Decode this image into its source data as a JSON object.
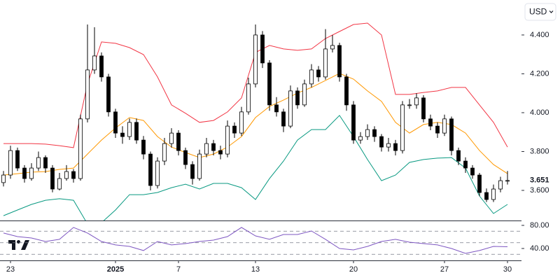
{
  "currency": "USD",
  "chart_data": [
    {
      "type": "candlestick",
      "xlim": [
        -0.5,
        74
      ],
      "ylim": [
        3.445,
        4.58
      ],
      "xticks": [
        {
          "value": 1,
          "label": "23"
        },
        {
          "value": 16,
          "label": "2025"
        },
        {
          "value": 25,
          "label": "7"
        },
        {
          "value": 36,
          "label": "13"
        },
        {
          "value": 50,
          "label": "20"
        },
        {
          "value": 63,
          "label": "27"
        },
        {
          "value": 72,
          "label": "30"
        }
      ],
      "yticks": [
        {
          "value": 4.4,
          "label": "4.400"
        },
        {
          "value": 4.2,
          "label": "4.200"
        },
        {
          "value": 4.0,
          "label": "4.000"
        },
        {
          "value": 3.8,
          "label": "3.800"
        },
        {
          "value": 3.6,
          "label": "3.600"
        }
      ],
      "up_color": "#ffffff",
      "down_color": "#000000",
      "edge_color": "#000000",
      "open": [
        3.64,
        3.679,
        3.805,
        3.715,
        3.661,
        3.715,
        3.769,
        3.715,
        3.607,
        3.661,
        3.697,
        3.661,
        3.968,
        4.22,
        4.292,
        4.184,
        4.004,
        3.895,
        3.877,
        3.95,
        3.859,
        3.787,
        3.625,
        3.751,
        3.841,
        3.895,
        3.805,
        3.733,
        3.661,
        3.787,
        3.841,
        3.805,
        3.787,
        3.931,
        3.895,
        4.004,
        4.148,
        4.4,
        4.256,
        4.04,
        4.004,
        3.931,
        4.112,
        4.04,
        4.148,
        4.22,
        4.184,
        4.328,
        4.346,
        4.184,
        4.04,
        3.859,
        3.877,
        3.913,
        3.877,
        3.823,
        3.841,
        3.805,
        4.04,
        4.04,
        4.076,
        3.968,
        3.931,
        3.895,
        3.968,
        3.805,
        3.751,
        3.715,
        3.679,
        3.589,
        3.553,
        3.607,
        3.65
      ],
      "high": [
        3.7,
        3.83,
        3.82,
        3.73,
        3.74,
        3.8,
        3.78,
        3.73,
        3.69,
        3.73,
        3.71,
        3.99,
        4.454,
        4.44,
        4.31,
        4.2,
        4.02,
        3.93,
        3.97,
        3.97,
        3.88,
        3.8,
        3.77,
        3.87,
        3.92,
        3.91,
        3.82,
        3.75,
        3.81,
        3.87,
        3.86,
        3.83,
        3.96,
        3.95,
        4.03,
        4.18,
        4.454,
        4.42,
        4.27,
        4.08,
        4.02,
        4.14,
        4.13,
        4.17,
        4.25,
        4.24,
        4.43,
        4.4,
        4.36,
        4.2,
        4.06,
        3.9,
        3.94,
        3.93,
        3.89,
        3.87,
        3.86,
        4.06,
        4.07,
        4.1,
        4.09,
        3.99,
        3.95,
        3.99,
        3.98,
        3.82,
        3.77,
        3.73,
        3.69,
        3.61,
        3.63,
        3.67,
        3.7
      ],
      "low": [
        3.62,
        3.66,
        3.7,
        3.64,
        3.65,
        3.7,
        3.69,
        3.59,
        3.6,
        3.65,
        3.64,
        3.65,
        3.95,
        4.2,
        4.16,
        3.98,
        3.87,
        3.84,
        3.86,
        3.84,
        3.76,
        3.6,
        3.61,
        3.73,
        3.82,
        3.78,
        3.71,
        3.63,
        3.65,
        3.77,
        3.78,
        3.76,
        3.77,
        3.87,
        3.88,
        3.99,
        4.13,
        4.23,
        4.01,
        3.98,
        3.9,
        3.92,
        4.02,
        4.03,
        4.13,
        4.16,
        4.17,
        4.31,
        4.16,
        4.01,
        3.84,
        3.84,
        3.86,
        3.85,
        3.8,
        3.8,
        3.78,
        3.79,
        4.02,
        4.02,
        3.95,
        3.91,
        3.87,
        3.88,
        3.78,
        3.73,
        3.69,
        3.66,
        3.57,
        3.54,
        3.54,
        3.59,
        3.63
      ],
      "close": [
        3.679,
        3.805,
        3.715,
        3.661,
        3.715,
        3.769,
        3.715,
        3.607,
        3.661,
        3.697,
        3.661,
        3.968,
        4.22,
        4.292,
        4.184,
        4.004,
        3.895,
        3.877,
        3.95,
        3.859,
        3.787,
        3.625,
        3.751,
        3.841,
        3.895,
        3.805,
        3.733,
        3.661,
        3.787,
        3.841,
        3.805,
        3.787,
        3.931,
        3.895,
        4.004,
        4.148,
        4.4,
        4.256,
        4.04,
        4.004,
        3.931,
        4.112,
        4.04,
        4.148,
        4.22,
        4.184,
        4.328,
        4.346,
        4.184,
        4.04,
        3.859,
        3.877,
        3.913,
        3.877,
        3.823,
        3.841,
        3.805,
        4.04,
        4.04,
        4.076,
        3.968,
        3.931,
        3.895,
        3.968,
        3.805,
        3.751,
        3.715,
        3.679,
        3.589,
        3.553,
        3.607,
        3.65,
        3.651
      ],
      "last_value_label": "3.651"
    },
    {
      "type": "line",
      "xlim": [
        -0.5,
        74
      ],
      "ylim": [
        3.445,
        4.58
      ],
      "x": [
        0,
        2,
        4,
        6,
        8,
        10,
        12,
        14,
        16,
        18,
        20,
        22,
        24,
        26,
        28,
        30,
        32,
        34,
        36,
        38,
        40,
        42,
        44,
        46,
        48,
        50,
        52,
        54,
        56,
        58,
        60,
        62,
        64,
        66,
        68,
        70,
        72
      ],
      "series": [
        {
          "color": "#f23645",
          "values": [
            3.841,
            3.841,
            3.841,
            3.838,
            3.83,
            3.82,
            4.148,
            4.364,
            4.357,
            4.335,
            4.299,
            4.184,
            4.04,
            3.997,
            3.95,
            3.96,
            4.004,
            4.076,
            4.31,
            4.346,
            4.328,
            4.321,
            4.328,
            4.382,
            4.418,
            4.454,
            4.461,
            4.4,
            4.094,
            4.094,
            4.104,
            4.112,
            4.13,
            4.13,
            4.04,
            3.95,
            3.823
          ]
        },
        {
          "color": "#ff9800",
          "values": [
            3.679,
            3.686,
            3.694,
            3.697,
            3.708,
            3.715,
            3.787,
            3.859,
            3.921,
            3.975,
            3.96,
            3.877,
            3.823,
            3.795,
            3.769,
            3.787,
            3.823,
            3.877,
            3.975,
            4.032,
            4.065,
            4.101,
            4.13,
            4.166,
            4.202,
            4.173,
            4.112,
            4.058,
            3.95,
            3.895,
            3.939,
            3.95,
            3.939,
            3.895,
            3.805,
            3.733,
            3.686
          ]
        },
        {
          "color": "#089981",
          "values": [
            3.47,
            3.499,
            3.528,
            3.549,
            3.557,
            3.549,
            3.427,
            3.434,
            3.499,
            3.578,
            3.578,
            3.589,
            3.614,
            3.632,
            3.607,
            3.636,
            3.636,
            3.614,
            3.553,
            3.661,
            3.751,
            3.859,
            3.913,
            3.913,
            3.986,
            3.877,
            3.759,
            3.65,
            3.679,
            3.744,
            3.759,
            3.766,
            3.769,
            3.715,
            3.571,
            3.481,
            3.528
          ]
        }
      ]
    },
    {
      "type": "line",
      "xlim": [
        -0.5,
        74
      ],
      "ylim": [
        21.8,
        84.8
      ],
      "yticks": [
        {
          "value": 80,
          "label": "80.00"
        },
        {
          "value": 40,
          "label": "40.00"
        }
      ],
      "levels": [
        70,
        50,
        30
      ],
      "x": [
        0,
        2,
        4,
        6,
        8,
        10,
        12,
        14,
        16,
        18,
        20,
        22,
        24,
        26,
        28,
        30,
        32,
        34,
        36,
        38,
        40,
        42,
        44,
        46,
        48,
        50,
        52,
        54,
        56,
        58,
        60,
        62,
        64,
        66,
        68,
        70,
        72
      ],
      "series": [
        {
          "color": "#7e57c2",
          "values": [
            66.7,
            60.6,
            58.2,
            52.1,
            55.8,
            76.4,
            66.7,
            52.1,
            46.1,
            43.6,
            36.4,
            52.1,
            46.1,
            48.5,
            52.1,
            54.5,
            60.6,
            76.4,
            61.8,
            55.8,
            64.2,
            64.2,
            70.3,
            55.8,
            40.0,
            37.6,
            43.6,
            52.1,
            55.8,
            50.9,
            48.5,
            46.1,
            40.0,
            31.5,
            36.4,
            43.6,
            43.0
          ]
        }
      ]
    }
  ]
}
